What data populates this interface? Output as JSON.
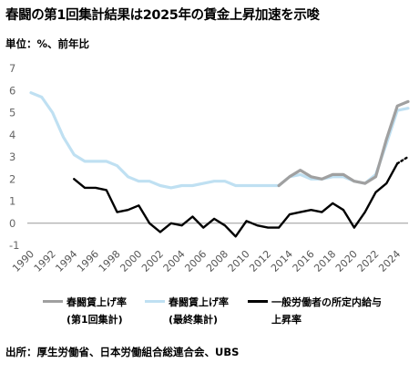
{
  "title": "春闘の第1回集計結果は2025年の賃金上昇加速を示唆",
  "unit_label": "単位：%、前年比",
  "source": "出所：厚生労働省、日本労働組合総連合会、UBS",
  "legend": [
    {
      "line1": "春闘賃上げ率",
      "line2": "(第1回集計)",
      "color": "#a0a0a0"
    },
    {
      "line1": "春闘賃上げ率",
      "line2": "(最終集計)",
      "color": "#bfe0f2"
    },
    {
      "line1": "一般労働者の所定内給与",
      "line2": "上昇率",
      "color": "#000000"
    }
  ],
  "chart_data": {
    "type": "line",
    "ylim": [
      -1,
      7
    ],
    "yticks": [
      -1,
      0,
      1,
      2,
      3,
      4,
      5,
      6,
      7
    ],
    "xlim": [
      1990,
      2025
    ],
    "xticks": [
      "1990",
      "1992",
      "1994",
      "1996",
      "1998",
      "2000",
      "2002",
      "2004",
      "2006",
      "2008",
      "2010",
      "2012",
      "2014",
      "2016",
      "2018",
      "2020",
      "2022",
      "2024"
    ],
    "grid": false,
    "series": [
      {
        "name": "春闘賃上げ率(第1回集計)",
        "color": "#a0a0a0",
        "x": [
          2013,
          2014,
          2015,
          2016,
          2017,
          2018,
          2019,
          2020,
          2021,
          2022,
          2023,
          2024,
          2025
        ],
        "values": [
          1.7,
          2.1,
          2.4,
          2.1,
          2.0,
          2.2,
          2.2,
          1.9,
          1.8,
          2.1,
          3.8,
          5.3,
          5.5
        ]
      },
      {
        "name": "春闘賃上げ率(最終集計)",
        "color": "#bfe0f2",
        "x": [
          1990,
          1991,
          1992,
          1993,
          1994,
          1995,
          1996,
          1997,
          1998,
          1999,
          2000,
          2001,
          2002,
          2003,
          2004,
          2005,
          2006,
          2007,
          2008,
          2009,
          2010,
          2011,
          2012,
          2013,
          2014,
          2015,
          2016,
          2017,
          2018,
          2019,
          2020,
          2021,
          2022,
          2023,
          2024,
          2025
        ],
        "values": [
          5.9,
          5.7,
          5.0,
          3.9,
          3.1,
          2.8,
          2.8,
          2.8,
          2.6,
          2.1,
          1.9,
          1.9,
          1.7,
          1.6,
          1.7,
          1.7,
          1.8,
          1.9,
          1.9,
          1.7,
          1.7,
          1.7,
          1.7,
          1.7,
          2.1,
          2.2,
          2.0,
          2.0,
          2.1,
          2.1,
          1.9,
          1.8,
          2.2,
          3.6,
          5.1,
          5.2
        ]
      },
      {
        "name": "一般労働者の所定内給与上昇率",
        "color": "#000000",
        "x": [
          1994,
          1995,
          1996,
          1997,
          1998,
          1999,
          2000,
          2001,
          2002,
          2003,
          2004,
          2005,
          2006,
          2007,
          2008,
          2009,
          2010,
          2011,
          2012,
          2013,
          2014,
          2015,
          2016,
          2017,
          2018,
          2019,
          2020,
          2021,
          2022,
          2023,
          2024
        ],
        "values": [
          2.0,
          1.6,
          1.6,
          1.5,
          0.5,
          0.6,
          0.8,
          0.0,
          -0.4,
          0.0,
          -0.1,
          0.3,
          -0.2,
          0.2,
          -0.1,
          -0.6,
          0.1,
          -0.1,
          -0.2,
          -0.2,
          0.4,
          0.5,
          0.6,
          0.5,
          0.9,
          0.6,
          -0.2,
          0.5,
          1.4,
          1.8,
          2.7
        ],
        "projection": {
          "x": [
            2024,
            2025
          ],
          "values": [
            2.7,
            3.0
          ]
        }
      }
    ]
  }
}
